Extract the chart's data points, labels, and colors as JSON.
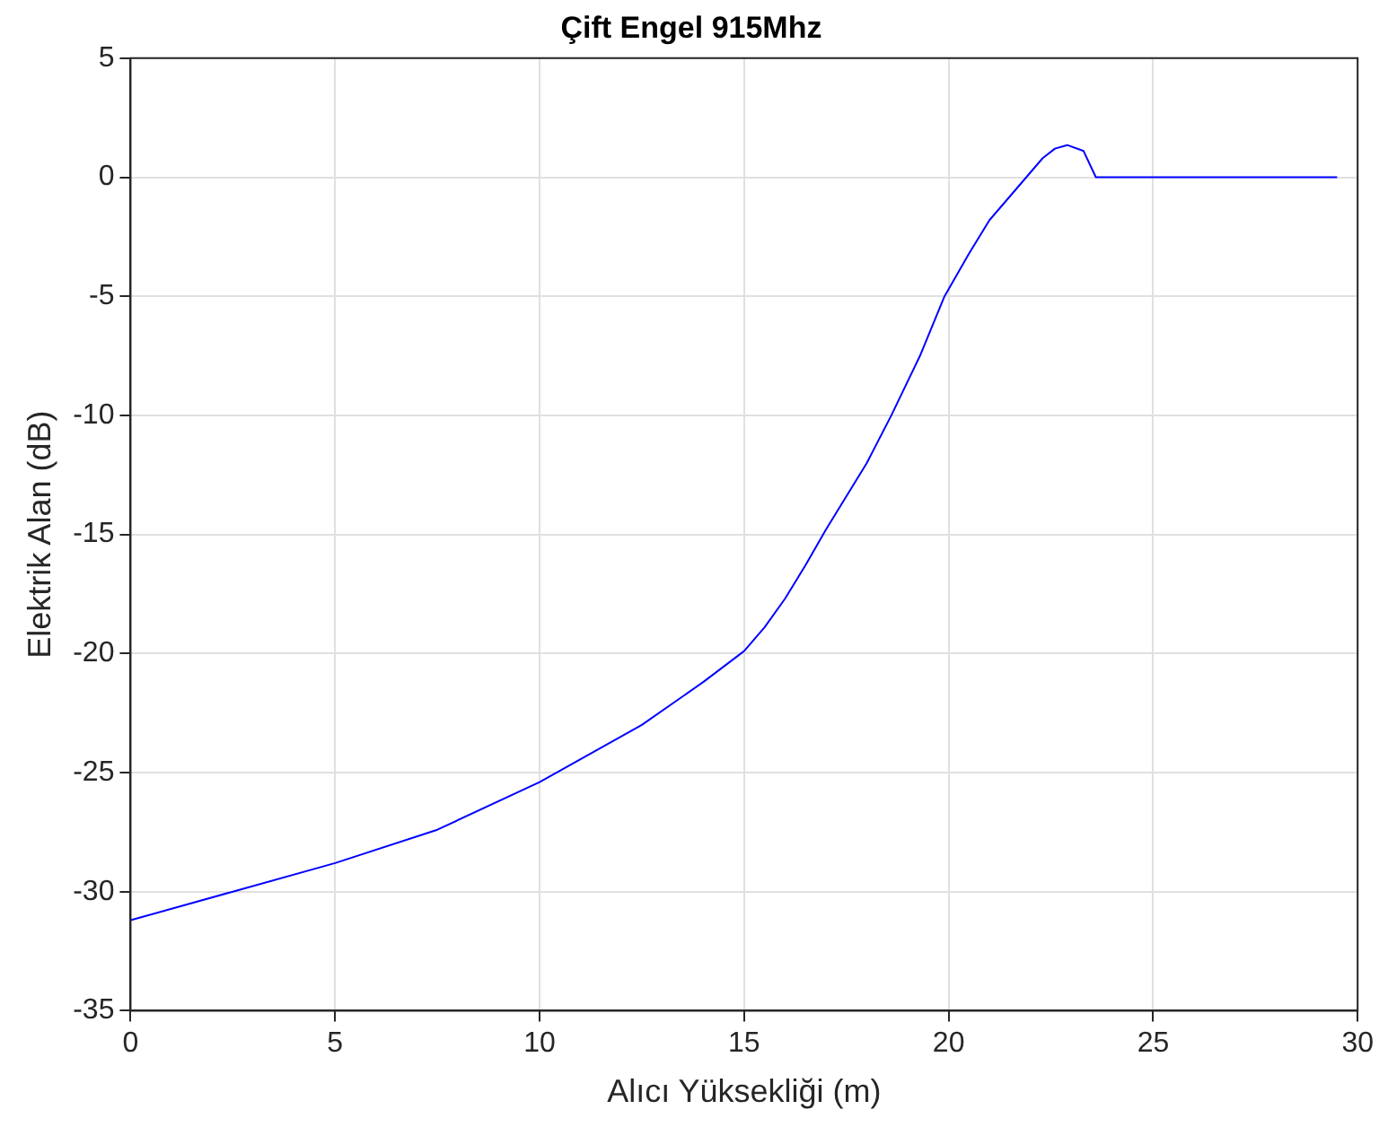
{
  "chart_data": {
    "type": "line",
    "title": "Çift Engel 915Mhz",
    "xlabel": "Alıcı Yüksekliği (m)",
    "ylabel": "Elektrik Alan (dB)",
    "x": [
      0,
      2.5,
      5,
      7.5,
      10,
      12.5,
      14,
      15,
      15.5,
      16,
      16.5,
      17,
      18,
      18.6,
      19.3,
      19.9,
      20.5,
      21,
      21.5,
      21.9,
      22.3,
      22.6,
      22.9,
      23.3,
      23.6,
      29.5
    ],
    "series": [
      {
        "color": "#0000ff",
        "values": [
          -31.2,
          -30.0,
          -28.8,
          -27.4,
          -25.4,
          -23.0,
          -21.2,
          -19.9,
          -18.9,
          -17.7,
          -16.3,
          -14.8,
          -12.0,
          -10,
          -7.5,
          -5,
          -3.2,
          -1.8,
          -0.8,
          0,
          0.8,
          1.2,
          1.35,
          1.1,
          0,
          0
        ]
      }
    ],
    "xlim": [
      0,
      30
    ],
    "xticks": [
      0,
      5,
      10,
      15,
      20,
      25,
      30
    ],
    "ylim": [
      -35,
      5
    ],
    "yticks": [
      -35,
      -30,
      -25,
      -20,
      -15,
      -10,
      -5,
      0,
      5
    ],
    "grid": true,
    "legend": false,
    "marker": "none",
    "line_style": "solid"
  }
}
